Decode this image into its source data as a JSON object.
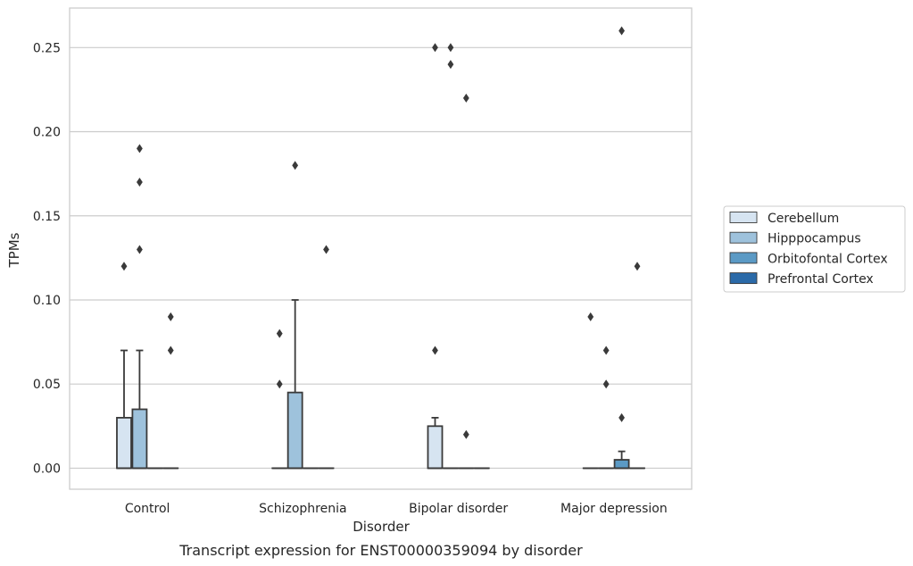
{
  "chart_data": {
    "type": "box",
    "caption": "Transcript expression for ENST00000359094 by disorder",
    "xlabel": "Disorder",
    "ylabel": "TPMs",
    "ylim": [
      -0.0125,
      0.2735
    ],
    "yticks": [
      "0.00",
      "0.05",
      "0.10",
      "0.15",
      "0.20",
      "0.25"
    ],
    "grid": "horizontal",
    "legend_position": "right",
    "categories": [
      "Control",
      "Schizophrenia",
      "Bipolar disorder",
      "Major depression"
    ],
    "series": [
      {
        "name": "Cerebellum",
        "color": "#d6e4f1",
        "boxes": [
          {
            "q1": 0.0,
            "median": 0.0,
            "q3": 0.03,
            "whisker_low": 0.0,
            "whisker_high": 0.07,
            "outliers": [
              0.12
            ]
          },
          {
            "q1": 0.0,
            "median": 0.0,
            "q3": 0.0,
            "whisker_low": 0.0,
            "whisker_high": 0.0,
            "outliers": [
              0.08,
              0.05
            ]
          },
          {
            "q1": 0.0,
            "median": 0.0,
            "q3": 0.025,
            "whisker_low": 0.0,
            "whisker_high": 0.03,
            "outliers": [
              0.25,
              0.07
            ]
          },
          {
            "q1": 0.0,
            "median": 0.0,
            "q3": 0.0,
            "whisker_low": 0.0,
            "whisker_high": 0.0,
            "outliers": [
              0.09
            ]
          }
        ]
      },
      {
        "name": "Hipppocampus",
        "color": "#9ec2dc",
        "boxes": [
          {
            "q1": 0.0,
            "median": 0.0,
            "q3": 0.035,
            "whisker_low": 0.0,
            "whisker_high": 0.07,
            "outliers": [
              0.19,
              0.17,
              0.13
            ]
          },
          {
            "q1": 0.0,
            "median": 0.0,
            "q3": 0.045,
            "whisker_low": 0.0,
            "whisker_high": 0.1,
            "outliers": [
              0.18
            ]
          },
          {
            "q1": 0.0,
            "median": 0.0,
            "q3": 0.0,
            "whisker_low": 0.0,
            "whisker_high": 0.0,
            "outliers": [
              0.25,
              0.24
            ]
          },
          {
            "q1": 0.0,
            "median": 0.0,
            "q3": 0.0,
            "whisker_low": 0.0,
            "whisker_high": 0.0,
            "outliers": [
              0.07,
              0.05
            ]
          }
        ]
      },
      {
        "name": "Orbitofontal Cortex",
        "color": "#5b9ac5",
        "boxes": [
          {
            "q1": 0.0,
            "median": 0.0,
            "q3": 0.0,
            "whisker_low": 0.0,
            "whisker_high": 0.0,
            "outliers": []
          },
          {
            "q1": 0.0,
            "median": 0.0,
            "q3": 0.0,
            "whisker_low": 0.0,
            "whisker_high": 0.0,
            "outliers": []
          },
          {
            "q1": 0.0,
            "median": 0.0,
            "q3": 0.0,
            "whisker_low": 0.0,
            "whisker_high": 0.0,
            "outliers": [
              0.22,
              0.02
            ]
          },
          {
            "q1": 0.0,
            "median": 0.0,
            "q3": 0.005,
            "whisker_low": 0.0,
            "whisker_high": 0.01,
            "outliers": [
              0.26,
              0.03
            ]
          }
        ]
      },
      {
        "name": "Prefrontal Cortex",
        "color": "#2b6aa8",
        "boxes": [
          {
            "q1": 0.0,
            "median": 0.0,
            "q3": 0.0,
            "whisker_low": 0.0,
            "whisker_high": 0.0,
            "outliers": [
              0.09,
              0.07
            ]
          },
          {
            "q1": 0.0,
            "median": 0.0,
            "q3": 0.0,
            "whisker_low": 0.0,
            "whisker_high": 0.0,
            "outliers": [
              0.13
            ]
          },
          {
            "q1": 0.0,
            "median": 0.0,
            "q3": 0.0,
            "whisker_low": 0.0,
            "whisker_high": 0.0,
            "outliers": []
          },
          {
            "q1": 0.0,
            "median": 0.0,
            "q3": 0.0,
            "whisker_low": 0.0,
            "whisker_high": 0.0,
            "outliers": [
              0.12
            ]
          }
        ]
      }
    ]
  }
}
